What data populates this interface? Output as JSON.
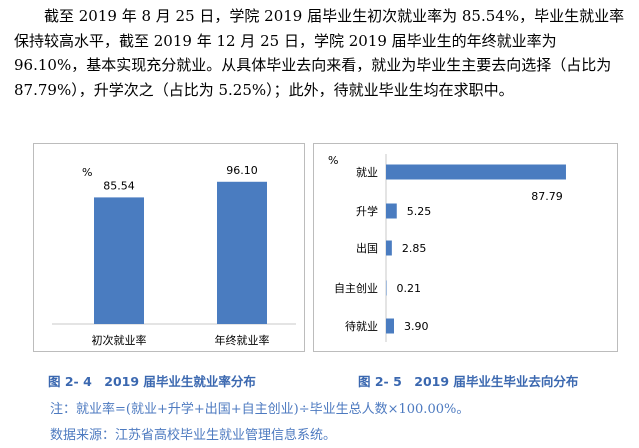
{
  "paragraph": "截至 2019 年 8 月 25 日，学院 2019 届毕业生初次就业率为 85.54%，毕业生就业率保持较高水平，截至 2019 年 12 月 25 日，学院 2019 届毕业生的年终就业率为 96.10%，基本实现充分就业。从具体毕业去向来看，就业为毕业生主要去向选择（占比为 87.79%），升学次之（占比为 5.25%）；此外，待就业毕业生均在求职中。",
  "chart_data": [
    {
      "type": "bar",
      "unit": "%",
      "categories": [
        "初次就业率",
        "年终就业率"
      ],
      "values": [
        85.54,
        96.1
      ],
      "value_labels": [
        "85.54",
        "96.10"
      ],
      "color": "#4a7cc0"
    },
    {
      "type": "bar",
      "orientation": "horizontal",
      "unit": "%",
      "categories": [
        "就业",
        "升学",
        "出国",
        "自主创业",
        "待就业"
      ],
      "values": [
        87.79,
        5.25,
        2.85,
        0.21,
        3.9
      ],
      "value_labels": [
        "87.79",
        "5.25",
        "2.85",
        "0.21",
        "3.90"
      ],
      "color": "#4a7cc0"
    }
  ],
  "captions": {
    "fig1": "图 2- 4　2019 届毕业生就业率分布",
    "fig2": "图 2- 5　2019 届毕业生毕业去向分布"
  },
  "notes": {
    "note": "注：就业率=(就业+升学+出国+自主创业)÷毕业生总人数×100.00%。",
    "source": "数据来源：江苏省高校毕业生就业管理信息系统。"
  }
}
